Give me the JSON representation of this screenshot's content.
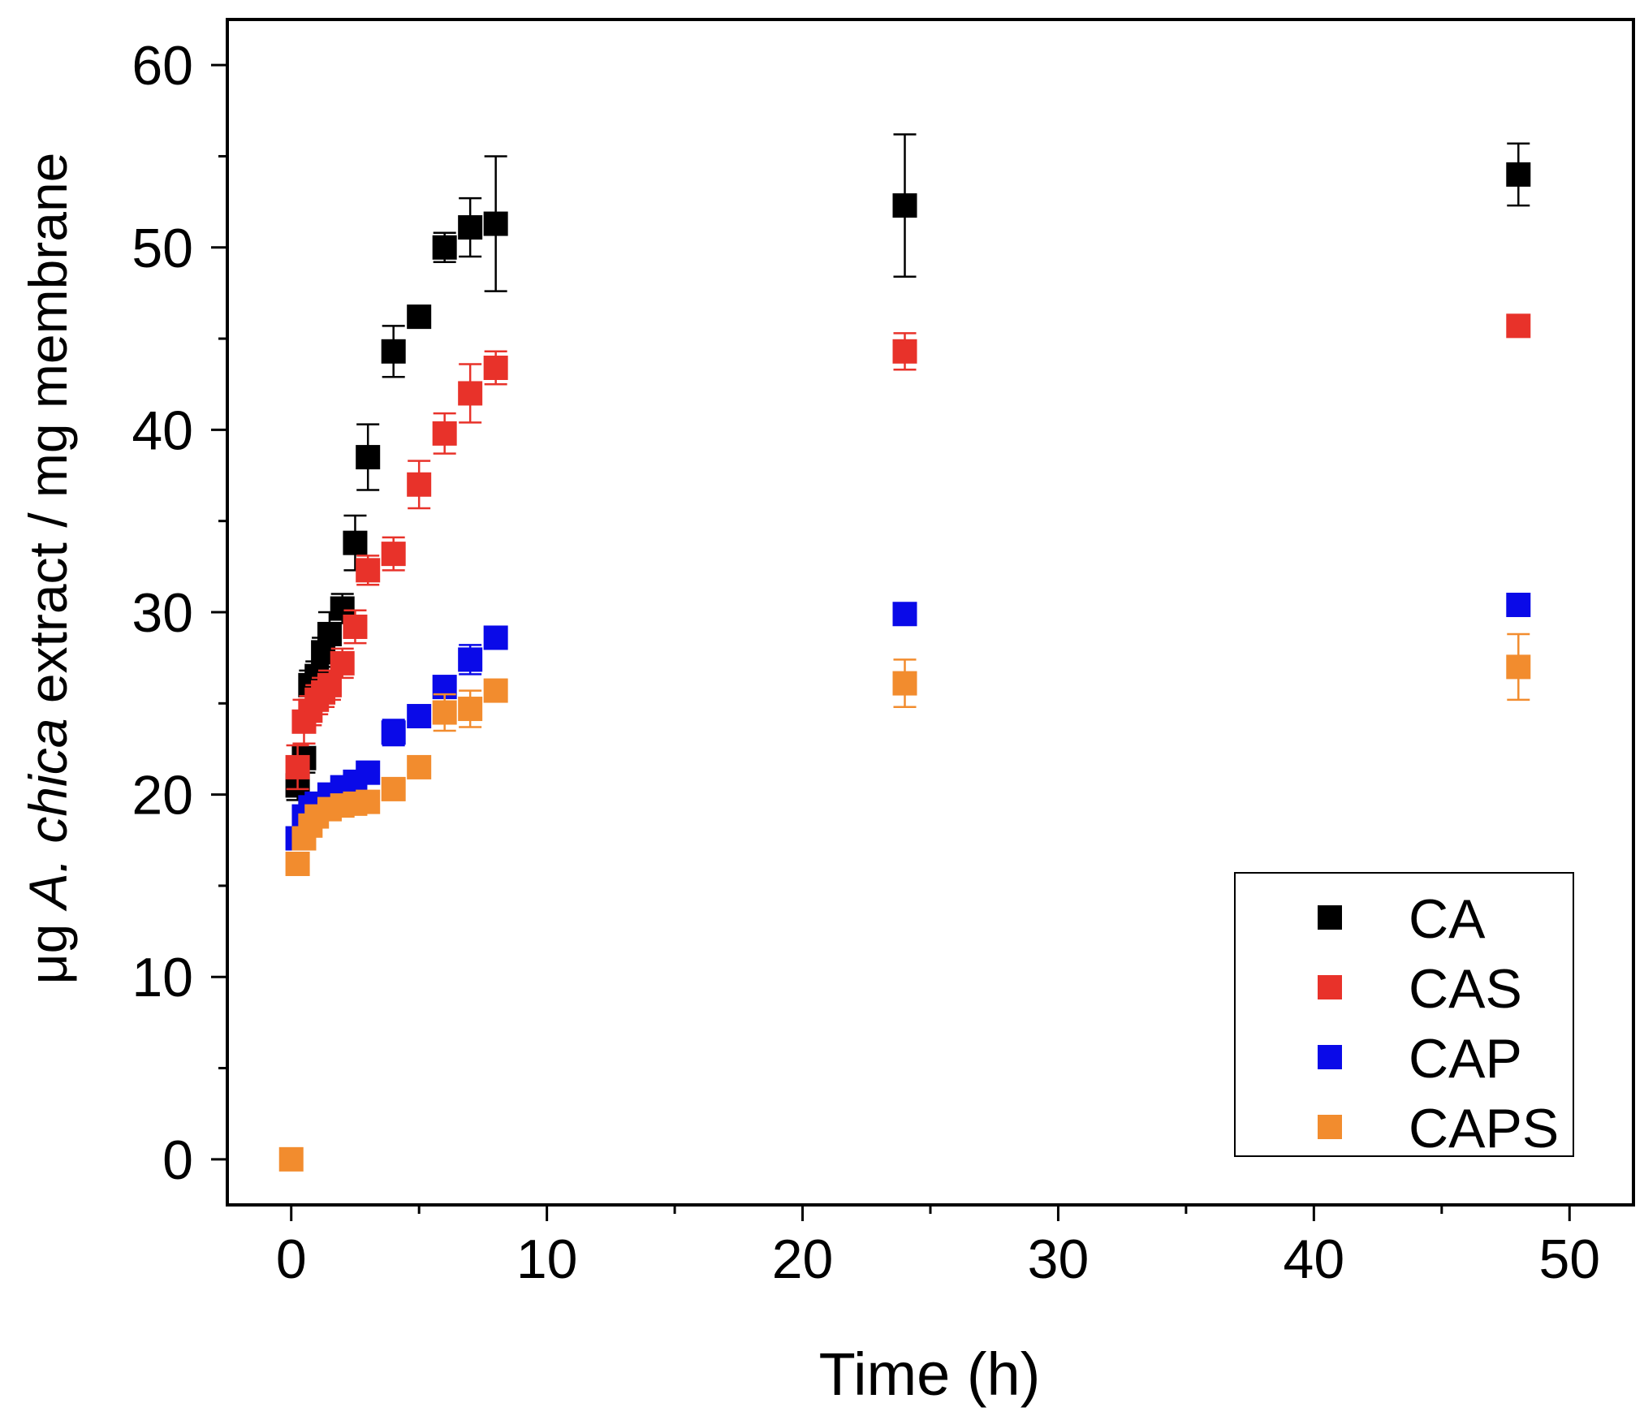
{
  "chart_data": {
    "type": "scatter",
    "xlabel": "Time (h)",
    "ylabel": {
      "prefix": "μg ",
      "italic": "A. chica",
      "suffix": " extract / mg membrane"
    },
    "xlim": [
      -2.5,
      52.5
    ],
    "ylim": [
      -2.5,
      62.5
    ],
    "xticks": [
      0,
      10,
      20,
      30,
      40,
      50
    ],
    "yticks": [
      0,
      10,
      20,
      30,
      40,
      50,
      60
    ],
    "grid": false,
    "legend_position": "bottom-right",
    "series": [
      {
        "name": "CA",
        "color": "#000000",
        "points": [
          {
            "x": 0.25,
            "y": 20.5,
            "err": 0.8
          },
          {
            "x": 0.5,
            "y": 22.0,
            "err": 0.8
          },
          {
            "x": 0.75,
            "y": 26.0,
            "err": 0.8
          },
          {
            "x": 1,
            "y": 26.5,
            "err": 0.8
          },
          {
            "x": 1.25,
            "y": 27.8,
            "err": 0.8
          },
          {
            "x": 1.5,
            "y": 28.8,
            "err": 1.2
          },
          {
            "x": 2,
            "y": 30.2,
            "err": 0.8
          },
          {
            "x": 2.5,
            "y": 33.8,
            "err": 1.5
          },
          {
            "x": 3,
            "y": 38.5,
            "err": 1.8
          },
          {
            "x": 4,
            "y": 44.3,
            "err": 1.4
          },
          {
            "x": 5,
            "y": 46.2,
            "err": 0.6
          },
          {
            "x": 6,
            "y": 50.0,
            "err": 0.8
          },
          {
            "x": 7,
            "y": 51.1,
            "err": 1.6
          },
          {
            "x": 8,
            "y": 51.3,
            "err": 3.7
          },
          {
            "x": 24,
            "y": 52.3,
            "err": 3.9
          },
          {
            "x": 48,
            "y": 54.0,
            "err": 1.7
          }
        ]
      },
      {
        "name": "CAS",
        "color": "#e8322a",
        "points": [
          {
            "x": 0.25,
            "y": 21.5,
            "err": 1.2
          },
          {
            "x": 0.5,
            "y": 24.0,
            "err": 1.2
          },
          {
            "x": 0.75,
            "y": 24.6,
            "err": 0.8
          },
          {
            "x": 1,
            "y": 25.2,
            "err": 0.8
          },
          {
            "x": 1.25,
            "y": 25.6,
            "err": 0.8
          },
          {
            "x": 1.5,
            "y": 26.0,
            "err": 0.8
          },
          {
            "x": 2,
            "y": 27.2,
            "err": 0.8
          },
          {
            "x": 2.5,
            "y": 29.2,
            "err": 0.9
          },
          {
            "x": 3,
            "y": 32.3,
            "err": 0.8
          },
          {
            "x": 4,
            "y": 33.2,
            "err": 0.9
          },
          {
            "x": 5,
            "y": 37.0,
            "err": 1.3
          },
          {
            "x": 6,
            "y": 39.8,
            "err": 1.1
          },
          {
            "x": 7,
            "y": 42.0,
            "err": 1.6
          },
          {
            "x": 8,
            "y": 43.4,
            "err": 0.9
          },
          {
            "x": 24,
            "y": 44.3,
            "err": 1.0
          },
          {
            "x": 48,
            "y": 45.7,
            "err": 0.5
          }
        ]
      },
      {
        "name": "CAP",
        "color": "#0a0ae8",
        "points": [
          {
            "x": 0.25,
            "y": 17.6,
            "err": 0.5
          },
          {
            "x": 0.5,
            "y": 18.8,
            "err": 0.5
          },
          {
            "x": 0.75,
            "y": 19.3,
            "err": 0.5
          },
          {
            "x": 1,
            "y": 19.5,
            "err": 0.5
          },
          {
            "x": 1.5,
            "y": 20.0,
            "err": 0.5
          },
          {
            "x": 2,
            "y": 20.4,
            "err": 0.5
          },
          {
            "x": 2.5,
            "y": 20.7,
            "err": 0.5
          },
          {
            "x": 3,
            "y": 21.2,
            "err": 0.6
          },
          {
            "x": 4,
            "y": 23.4,
            "err": 0.7
          },
          {
            "x": 5,
            "y": 24.3,
            "err": 0.5
          },
          {
            "x": 6,
            "y": 25.9,
            "err": 0.6
          },
          {
            "x": 7,
            "y": 27.4,
            "err": 0.8
          },
          {
            "x": 8,
            "y": 28.6,
            "err": 0.5
          },
          {
            "x": 24,
            "y": 29.9,
            "err": 0.4
          },
          {
            "x": 48,
            "y": 30.4,
            "err": 0.4
          }
        ]
      },
      {
        "name": "CAPS",
        "color": "#f28c2e",
        "points": [
          {
            "x": 0,
            "y": 0.0,
            "err": 0
          },
          {
            "x": 0.25,
            "y": 16.2,
            "err": 0.6
          },
          {
            "x": 0.5,
            "y": 17.6,
            "err": 0.5
          },
          {
            "x": 0.75,
            "y": 18.3,
            "err": 0.5
          },
          {
            "x": 1,
            "y": 18.8,
            "err": 0.5
          },
          {
            "x": 1.5,
            "y": 19.2,
            "err": 0.5
          },
          {
            "x": 2,
            "y": 19.4,
            "err": 0.5
          },
          {
            "x": 2.5,
            "y": 19.5,
            "err": 0.5
          },
          {
            "x": 3,
            "y": 19.6,
            "err": 0.5
          },
          {
            "x": 4,
            "y": 20.3,
            "err": 0.6
          },
          {
            "x": 5,
            "y": 21.5,
            "err": 0.5
          },
          {
            "x": 6,
            "y": 24.5,
            "err": 1.0
          },
          {
            "x": 7,
            "y": 24.7,
            "err": 1.0
          },
          {
            "x": 8,
            "y": 25.7,
            "err": 0.6
          },
          {
            "x": 24,
            "y": 26.1,
            "err": 1.3
          },
          {
            "x": 48,
            "y": 27.0,
            "err": 1.8
          }
        ]
      }
    ]
  }
}
